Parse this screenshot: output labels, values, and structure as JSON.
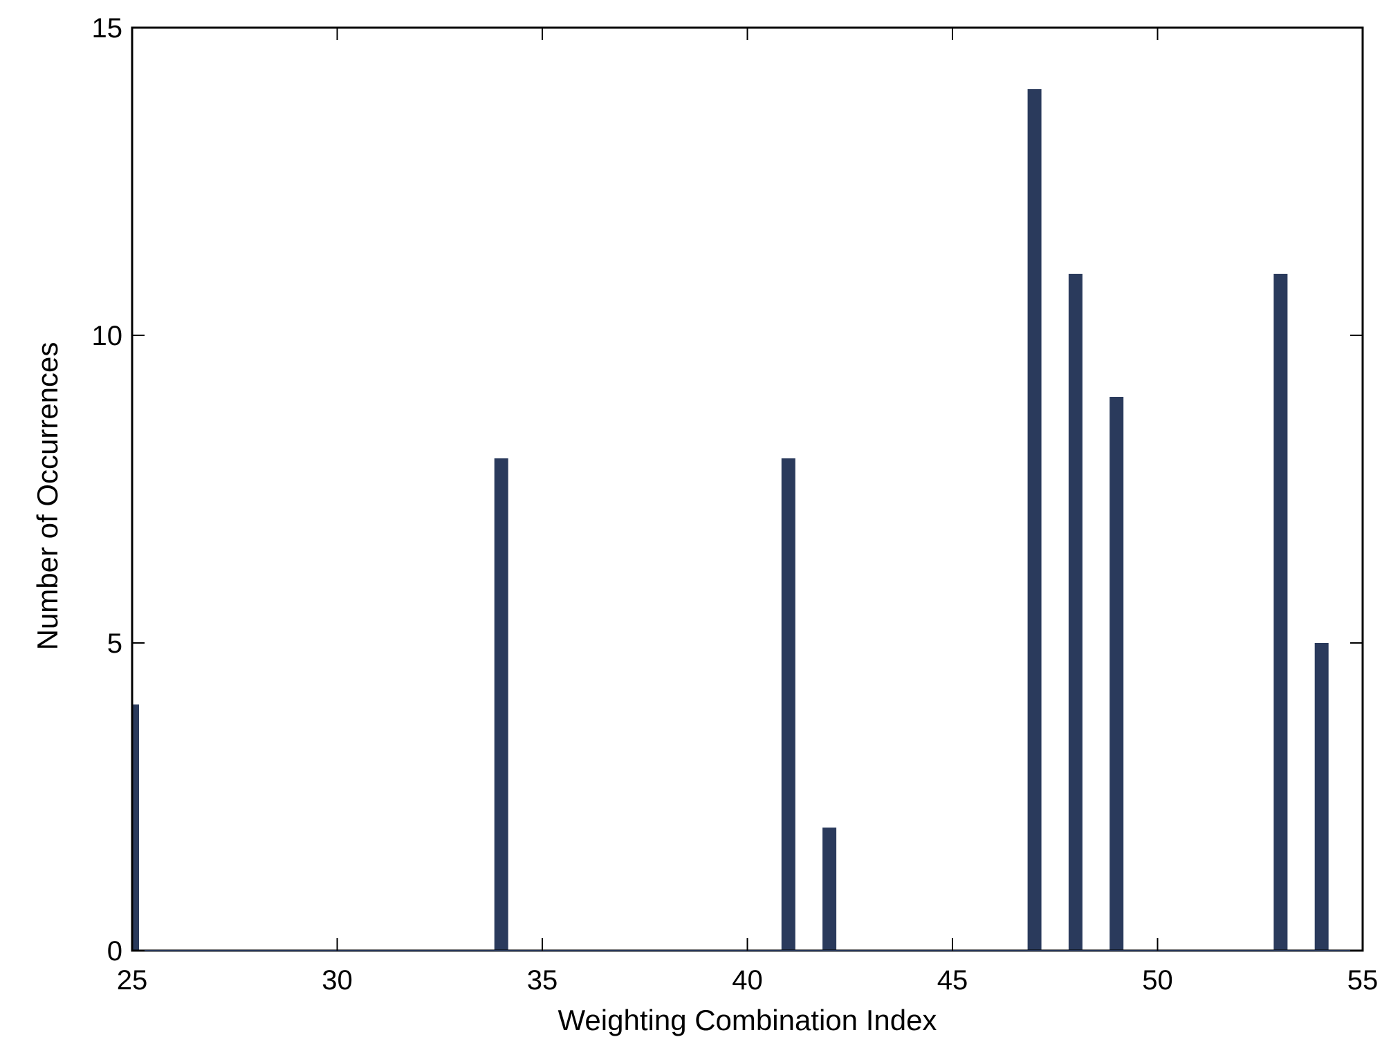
{
  "chart_data": {
    "type": "bar",
    "title": "",
    "xlabel": "Weighting Combination Index",
    "ylabel": "Number of Occurrences",
    "xlim": [
      25,
      55
    ],
    "ylim": [
      0,
      15
    ],
    "x_ticks": [
      25,
      30,
      35,
      40,
      45,
      50,
      55
    ],
    "y_ticks": [
      0,
      5,
      10,
      15
    ],
    "grid": false,
    "bar_color": "#2a3a5c",
    "x": [
      25,
      34,
      41,
      42,
      47,
      48,
      49,
      53,
      54
    ],
    "values": [
      4,
      8,
      8,
      2,
      14,
      11,
      9,
      11,
      5
    ]
  }
}
